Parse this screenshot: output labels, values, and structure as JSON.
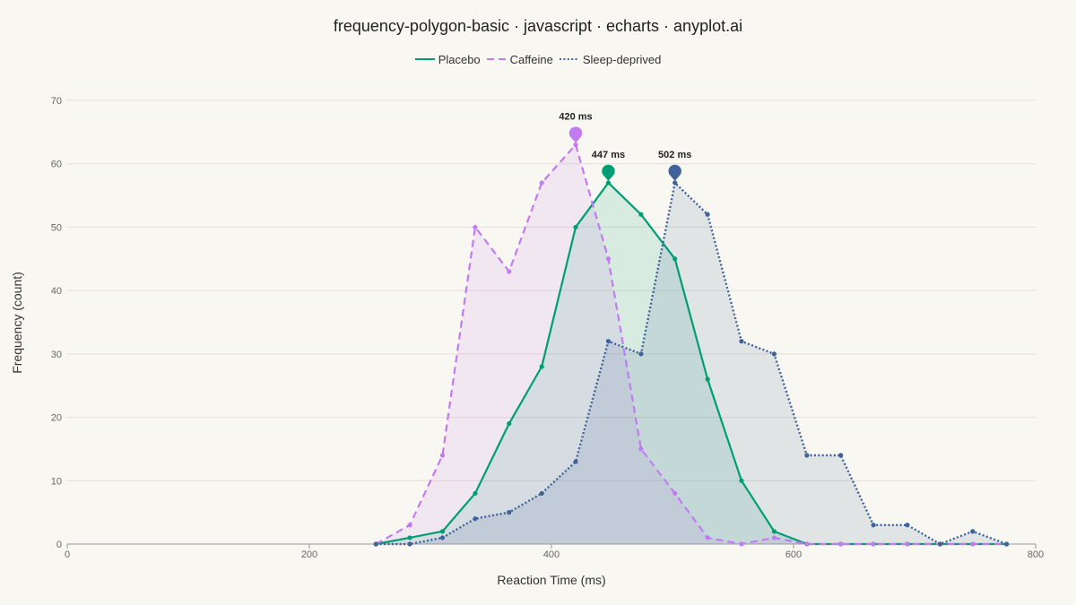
{
  "chart_data": {
    "type": "line",
    "title": "frequency-polygon-basic · javascript · echarts · anyplot.ai",
    "xlabel": "Reaction Time (ms)",
    "ylabel": "Frequency (count)",
    "xlim": [
      0,
      800
    ],
    "ylim": [
      0,
      70
    ],
    "x_ticks": [
      0,
      200,
      400,
      600,
      800
    ],
    "y_ticks": [
      0,
      10,
      20,
      30,
      40,
      50,
      60,
      70
    ],
    "grid": true,
    "filled_area": true,
    "legend_position": "top-center",
    "x": [
      255,
      283,
      310,
      337,
      365,
      392,
      420,
      447,
      474,
      502,
      529,
      557,
      584,
      611,
      639,
      666,
      694,
      721,
      748,
      776
    ],
    "series": [
      {
        "name": "Placebo",
        "color": "#009E73",
        "line_style": "solid",
        "values": [
          0,
          1,
          2,
          8,
          19,
          28,
          50,
          57,
          52,
          45,
          26,
          10,
          2,
          0,
          0,
          0,
          0,
          0,
          0,
          0
        ],
        "peak_label": "447 ms"
      },
      {
        "name": "Caffeine",
        "color": "#C27BF0",
        "line_style": "dashed",
        "values": [
          0,
          3,
          14,
          50,
          43,
          57,
          63,
          45,
          15,
          8,
          1,
          0,
          1,
          0,
          0,
          0,
          0,
          0,
          0,
          0
        ],
        "peak_label": "420 ms"
      },
      {
        "name": "Sleep-deprived",
        "color": "#3F6299",
        "line_style": "dotted",
        "values": [
          0,
          0,
          1,
          4,
          5,
          8,
          13,
          32,
          30,
          57,
          52,
          32,
          30,
          14,
          14,
          3,
          3,
          0,
          2,
          0
        ],
        "peak_label": "502 ms"
      }
    ]
  }
}
